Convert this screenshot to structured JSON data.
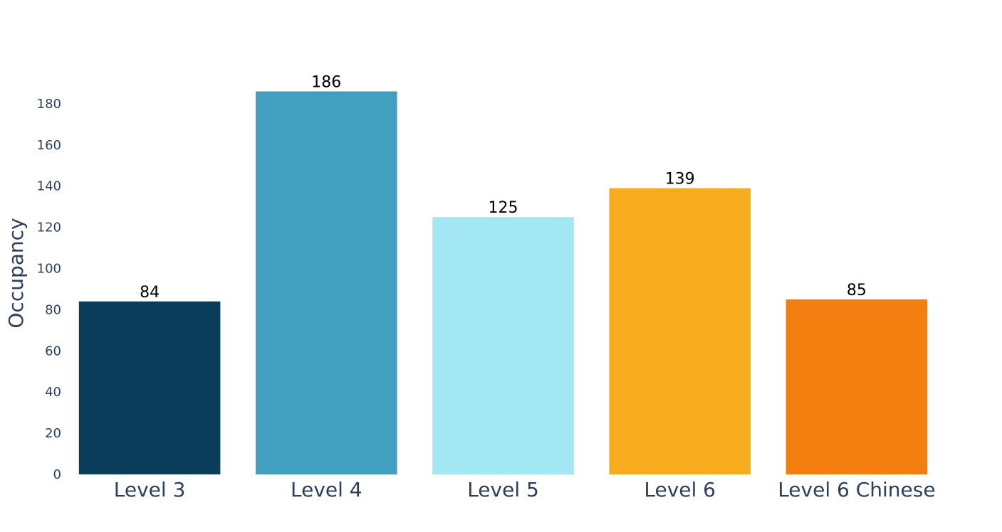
{
  "chart_data": {
    "type": "bar",
    "title": "",
    "xlabel": "",
    "ylabel": "Occupancy",
    "ylim": [
      0,
      186
    ],
    "yticks": [
      0,
      20,
      40,
      60,
      80,
      100,
      120,
      140,
      160,
      180
    ],
    "categories": [
      "Level 3",
      "Level 4",
      "Level 5",
      "Level 6",
      "Level 6 Chinese"
    ],
    "values": [
      84,
      186,
      125,
      139,
      85
    ],
    "colors": [
      "#0a3d5a",
      "#439fc0",
      "#a2e7f3",
      "#f7ac1e",
      "#f27f0f"
    ],
    "data_labels": [
      "84",
      "186",
      "125",
      "139",
      "85"
    ],
    "grid": false,
    "legend": "none"
  }
}
